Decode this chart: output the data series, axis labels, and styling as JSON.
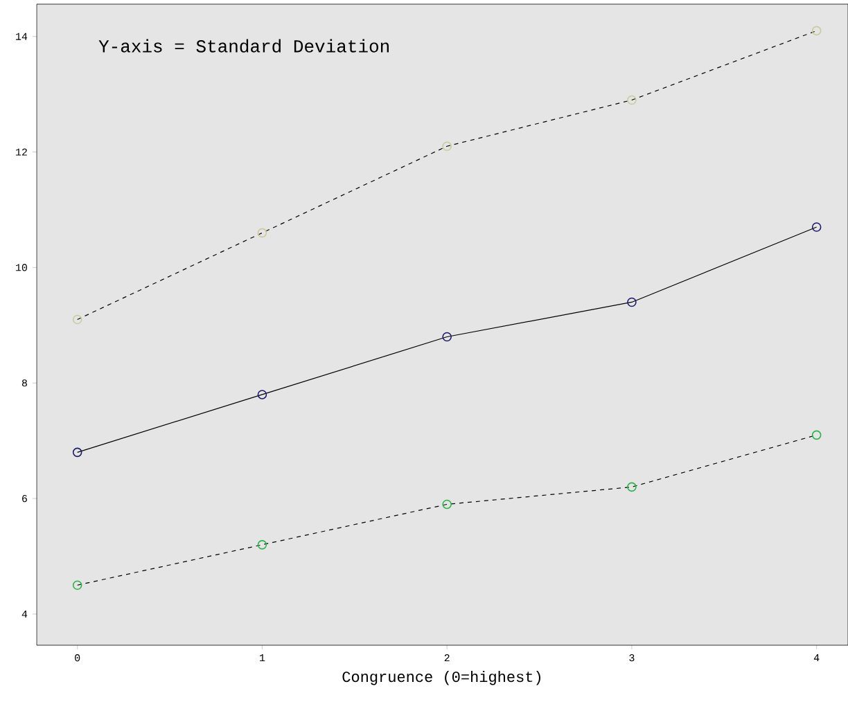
{
  "chart_data": {
    "type": "line",
    "xlabel": "Congruence (0=highest)",
    "annotations": [
      "Y-axis = Standard Deviation"
    ],
    "x": [
      0,
      1,
      2,
      3,
      4
    ],
    "series": [
      {
        "color": "#c8cc9c",
        "line_style": "dashed",
        "values": [
          9.1,
          10.6,
          12.1,
          12.9,
          14.1
        ]
      },
      {
        "color": "#1c1c6c",
        "line_style": "solid",
        "values": [
          6.8,
          7.8,
          8.8,
          9.4,
          10.7
        ]
      },
      {
        "color": "#2db34a",
        "line_style": "dashed",
        "values": [
          4.5,
          5.2,
          5.9,
          6.2,
          7.1
        ]
      }
    ],
    "marker": "circle",
    "xlim": [
      -0.22,
      4.17
    ],
    "ylim": [
      3.46,
      14.56
    ],
    "xticks": [
      0,
      1,
      2,
      3,
      4
    ],
    "yticks": [
      4,
      6,
      8,
      10,
      12,
      14
    ],
    "grid": false
  }
}
